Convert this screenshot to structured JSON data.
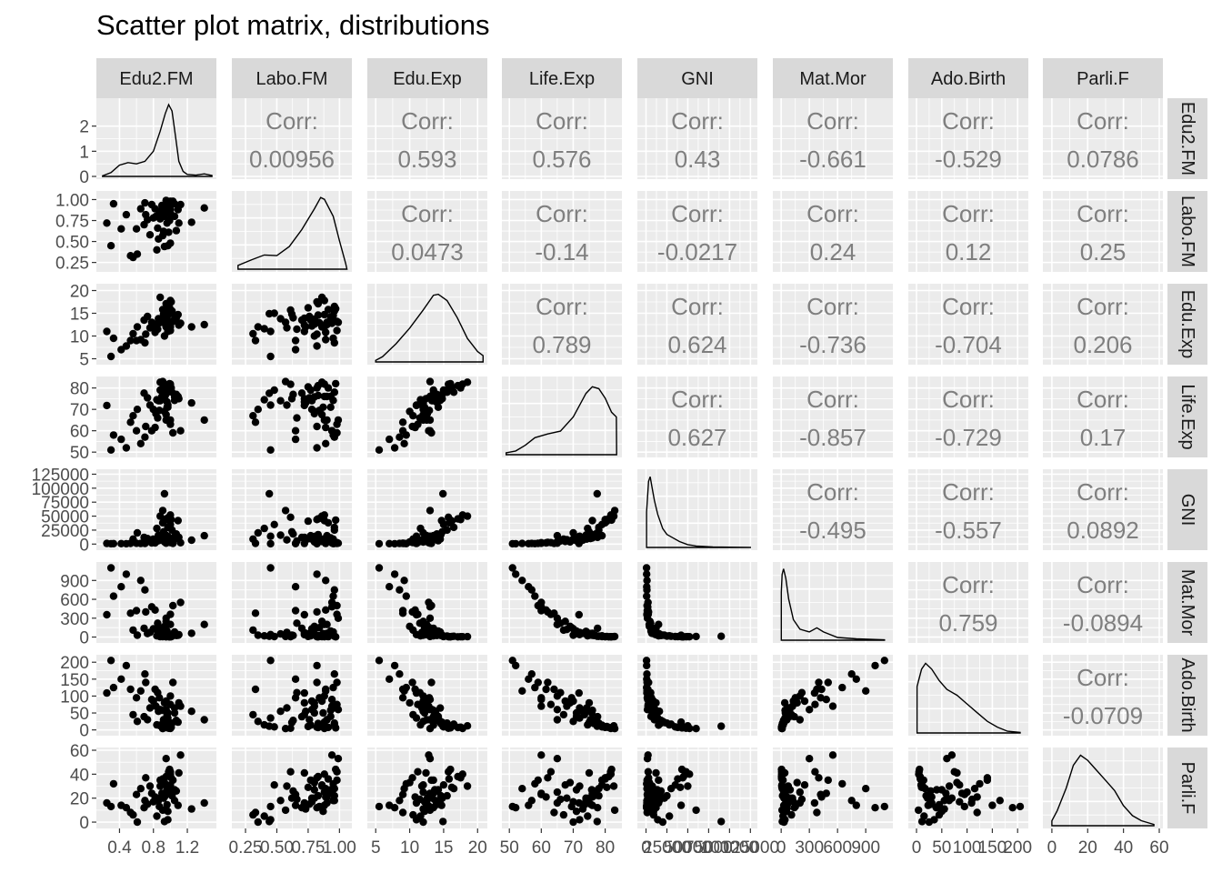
{
  "title": "Scatter plot matrix, distributions",
  "chart_data": {
    "type": "scatter",
    "title": "Scatter plot matrix, distributions",
    "variables": [
      "Edu2.FM",
      "Labo.FM",
      "Edu.Exp",
      "Life.Exp",
      "GNI",
      "Mat.Mor",
      "Ado.Birth",
      "Parli.F"
    ],
    "corr_label": "Corr:",
    "correlations": [
      [
        "",
        "0.00956",
        "0.593",
        "0.576",
        "0.43",
        "-0.661",
        "-0.529",
        "0.0786"
      ],
      [
        "",
        "",
        "0.0473",
        "-0.14",
        "-0.0217",
        "0.24",
        "0.12",
        "0.25"
      ],
      [
        "",
        "",
        "",
        "0.789",
        "0.624",
        "-0.736",
        "-0.704",
        "0.206"
      ],
      [
        "",
        "",
        "",
        "",
        "0.627",
        "-0.857",
        "-0.729",
        "0.17"
      ],
      [
        "",
        "",
        "",
        "",
        "",
        "-0.495",
        "-0.557",
        "0.0892"
      ],
      [
        "",
        "",
        "",
        "",
        "",
        "",
        "0.759",
        "-0.0894"
      ],
      [
        "",
        "",
        "",
        "",
        "",
        "",
        "",
        "-0.0709"
      ]
    ],
    "x_ticks": [
      [
        "0.4",
        "0.8",
        "1.2"
      ],
      [
        "0.25",
        "0.50",
        "0.75",
        "1.00"
      ],
      [
        "5",
        "10",
        "15",
        "20"
      ],
      [
        "50",
        "60",
        "70",
        "80"
      ],
      [
        "0",
        "25000",
        "50000",
        "75000",
        "100000",
        "125000"
      ],
      [
        "0",
        "300",
        "600",
        "900"
      ],
      [
        "0",
        "50",
        "100",
        "150",
        "200"
      ],
      [
        "0",
        "20",
        "40",
        "60"
      ]
    ],
    "y_ticks": [
      [
        "0",
        "1",
        "2"
      ],
      [
        "0.25",
        "0.50",
        "0.75",
        "1.00"
      ],
      [
        "5",
        "10",
        "15",
        "20"
      ],
      [
        "50",
        "60",
        "70",
        "80"
      ],
      [
        "0",
        "25000",
        "50000",
        "75000",
        "100000",
        "125000"
      ],
      [
        "0",
        "300",
        "600",
        "900"
      ],
      [
        "0",
        "50",
        "100",
        "150",
        "200"
      ],
      [
        "0",
        "20",
        "40",
        "60"
      ]
    ],
    "x_ranges": [
      [
        0.17,
        1.5
      ],
      [
        0.17,
        1.07
      ],
      [
        4.3,
        20.9
      ],
      [
        48.8,
        84.1
      ],
      [
        -6000,
        129000
      ],
      [
        -50,
        1150
      ],
      [
        -9,
        214
      ],
      [
        -3,
        60
      ]
    ],
    "y_ranges": [
      [
        0,
        3.0
      ],
      [
        0.17,
        1.07
      ],
      [
        4.3,
        20.9
      ],
      [
        48.8,
        84.1
      ],
      [
        -6000,
        129000
      ],
      [
        -50,
        1150
      ],
      [
        -9,
        214
      ],
      [
        -3,
        60
      ]
    ],
    "density_curves": [
      [
        [
          0.2,
          0.02
        ],
        [
          0.3,
          0.15
        ],
        [
          0.4,
          0.45
        ],
        [
          0.5,
          0.55
        ],
        [
          0.6,
          0.5
        ],
        [
          0.7,
          0.6
        ],
        [
          0.8,
          1.0
        ],
        [
          0.88,
          1.8
        ],
        [
          0.94,
          2.5
        ],
        [
          0.98,
          2.85
        ],
        [
          1.02,
          2.6
        ],
        [
          1.06,
          1.6
        ],
        [
          1.1,
          0.6
        ],
        [
          1.15,
          0.2
        ],
        [
          1.2,
          0.08
        ],
        [
          1.3,
          0.05
        ],
        [
          1.4,
          0.1
        ],
        [
          1.49,
          0.04
        ]
      ],
      [
        [
          0.19,
          0.2
        ],
        [
          0.3,
          0.5
        ],
        [
          0.4,
          0.75
        ],
        [
          0.5,
          0.72
        ],
        [
          0.6,
          1.2
        ],
        [
          0.7,
          2.1
        ],
        [
          0.8,
          3.2
        ],
        [
          0.85,
          3.8
        ],
        [
          0.88,
          3.7
        ],
        [
          0.95,
          2.8
        ],
        [
          1.0,
          1.5
        ],
        [
          1.05,
          0.3
        ],
        [
          1.06,
          0.0
        ]
      ],
      [
        [
          5.0,
          0.003
        ],
        [
          6.0,
          0.01
        ],
        [
          8.0,
          0.035
        ],
        [
          10.0,
          0.065
        ],
        [
          12.0,
          0.1
        ],
        [
          13.5,
          0.128
        ],
        [
          14.2,
          0.13
        ],
        [
          15.5,
          0.118
        ],
        [
          17.0,
          0.085
        ],
        [
          18.5,
          0.045
        ],
        [
          20.0,
          0.02
        ],
        [
          20.8,
          0.012
        ]
      ],
      [
        [
          49.0,
          0.002
        ],
        [
          52.0,
          0.004
        ],
        [
          55.0,
          0.01
        ],
        [
          58.0,
          0.018
        ],
        [
          62.0,
          0.022
        ],
        [
          66.0,
          0.025
        ],
        [
          70.0,
          0.04
        ],
        [
          74.0,
          0.065
        ],
        [
          76.0,
          0.072
        ],
        [
          78.0,
          0.07
        ],
        [
          80.0,
          0.06
        ],
        [
          82.0,
          0.045
        ],
        [
          83.5,
          0.04
        ],
        [
          83.6,
          0.0
        ]
      ],
      [
        [
          600,
          1.5
        ],
        [
          3000,
          2.8
        ],
        [
          5000,
          3.0
        ],
        [
          7000,
          2.6
        ],
        [
          10000,
          2.0
        ],
        [
          14000,
          1.4
        ],
        [
          20000,
          0.8
        ],
        [
          25000,
          0.55
        ],
        [
          30000,
          0.45
        ],
        [
          40000,
          0.25
        ],
        [
          50000,
          0.12
        ],
        [
          60000,
          0.06
        ],
        [
          80000,
          0.02
        ],
        [
          100000,
          0.01
        ],
        [
          125000,
          0.003
        ]
      ],
      [
        [
          1,
          0.0035
        ],
        [
          10,
          0.0048
        ],
        [
          25,
          0.0052
        ],
        [
          50,
          0.0045
        ],
        [
          80,
          0.003
        ],
        [
          130,
          0.0015
        ],
        [
          200,
          0.0008
        ],
        [
          300,
          0.0006
        ],
        [
          380,
          0.0009
        ],
        [
          450,
          0.0006
        ],
        [
          600,
          0.0002
        ],
        [
          800,
          0.0001
        ],
        [
          1000,
          5e-05
        ],
        [
          1100,
          3e-05
        ]
      ],
      [
        [
          1,
          0.008
        ],
        [
          10,
          0.011
        ],
        [
          18,
          0.012
        ],
        [
          30,
          0.011
        ],
        [
          45,
          0.009
        ],
        [
          60,
          0.0075
        ],
        [
          80,
          0.0065
        ],
        [
          100,
          0.005
        ],
        [
          120,
          0.0035
        ],
        [
          140,
          0.002
        ],
        [
          160,
          0.001
        ],
        [
          180,
          0.0003
        ],
        [
          205,
          0.0001
        ]
      ],
      [
        [
          0,
          0.002
        ],
        [
          3,
          0.006
        ],
        [
          8,
          0.015
        ],
        [
          12,
          0.024
        ],
        [
          16,
          0.028
        ],
        [
          20,
          0.026
        ],
        [
          25,
          0.022
        ],
        [
          30,
          0.018
        ],
        [
          35,
          0.014
        ],
        [
          40,
          0.008
        ],
        [
          45,
          0.004
        ],
        [
          50,
          0.002
        ],
        [
          57,
          0.0005
        ]
      ]
    ],
    "density_ymax": [
      3.0,
      4.0,
      0.145,
      0.08,
      3.2,
      0.0055,
      0.013,
      0.03
    ],
    "points": [
      [
        0.92,
        0.9,
        13.0,
        76.0,
        14000,
        60,
        30.0,
        21.0
      ],
      [
        0.73,
        0.76,
        14.3,
        75.4,
        10000,
        55,
        30.1,
        15.0
      ],
      [
        0.25,
        0.72,
        11.0,
        71.8,
        1130,
        355,
        108.9,
        16.0
      ],
      [
        0.69,
        0.7,
        13.5,
        77.6,
        12000,
        140,
        39.2,
        12.0
      ],
      [
        1.05,
        0.95,
        14.5,
        74.2,
        9000,
        80,
        64.6,
        18.0
      ],
      [
        0.97,
        0.96,
        16.5,
        78.0,
        30000,
        12,
        17.0,
        28.0
      ],
      [
        1.09,
        0.88,
        14.7,
        76.0,
        42000,
        28,
        23.0,
        14.0
      ],
      [
        0.88,
        0.86,
        18.5,
        82.7,
        50000,
        7,
        12.0,
        30.0
      ],
      [
        0.95,
        0.83,
        17.1,
        81.1,
        45000,
        4,
        7.0,
        38.0
      ],
      [
        0.98,
        0.61,
        15.7,
        81.7,
        48000,
        5,
        5.0,
        42.0
      ],
      [
        1.01,
        0.82,
        17.5,
        80.0,
        44000,
        5,
        8.0,
        37.0
      ],
      [
        0.91,
        0.57,
        13.0,
        83.0,
        60000,
        10,
        4.0,
        10.0
      ],
      [
        0.97,
        0.87,
        12.2,
        71.0,
        9000,
        55,
        50.0,
        9.0
      ],
      [
        0.83,
        0.8,
        12.6,
        68.0,
        8000,
        120,
        70.0,
        20.0
      ],
      [
        0.53,
        0.33,
        9.0,
        64.0,
        1400,
        380,
        120.0,
        8.0
      ],
      [
        0.97,
        0.45,
        11.0,
        72.0,
        14000,
        40,
        35.0,
        2.0
      ],
      [
        0.61,
        0.35,
        12.0,
        70.0,
        20000,
        30,
        25.0,
        0.0
      ],
      [
        0.86,
        0.53,
        13.8,
        74.0,
        16000,
        50,
        55.0,
        18.0
      ],
      [
        0.42,
        0.65,
        7.0,
        56.0,
        900,
        800,
        150.0,
        14.0
      ],
      [
        0.33,
        0.95,
        9.5,
        58.0,
        800,
        650,
        125.0,
        32.0
      ],
      [
        1.1,
        0.72,
        12.4,
        75.0,
        12000,
        38,
        80.0,
        41.0
      ],
      [
        0.88,
        0.78,
        13.3,
        74.0,
        11000,
        90,
        60.0,
        20.0
      ],
      [
        1.02,
        0.96,
        15.5,
        78.0,
        25000,
        15,
        20.0,
        22.0
      ],
      [
        0.65,
        0.89,
        9.2,
        54.0,
        1200,
        900,
        115.0,
        28.0
      ],
      [
        0.48,
        0.82,
        7.8,
        52.0,
        700,
        1000,
        190.0,
        12.0
      ],
      [
        1.0,
        0.88,
        12.0,
        65.0,
        3800,
        200,
        100.0,
        25.0
      ],
      [
        0.93,
        0.8,
        10.0,
        69.0,
        4000,
        170,
        80.0,
        33.0
      ],
      [
        0.85,
        0.66,
        11.5,
        66.0,
        5500,
        220,
        110.0,
        19.0
      ],
      [
        0.78,
        0.94,
        13.0,
        60.0,
        2100,
        480,
        90.0,
        24.0
      ],
      [
        1.25,
        0.73,
        12.0,
        73.0,
        7000,
        60,
        55.0,
        11.0
      ],
      [
        1.0,
        0.48,
        15.0,
        79.0,
        35000,
        8,
        9.0,
        31.0
      ],
      [
        0.96,
        0.93,
        14.2,
        71.0,
        6000,
        95,
        40.0,
        27.0
      ],
      [
        0.71,
        0.82,
        10.4,
        62.0,
        3000,
        400,
        140.0,
        37.0
      ],
      [
        1.07,
        0.63,
        14.0,
        77.0,
        18000,
        25,
        28.0,
        26.0
      ],
      [
        0.56,
        0.31,
        10.5,
        67.0,
        9000,
        110,
        45.0,
        6.0
      ],
      [
        0.99,
        0.97,
        16.0,
        82.0,
        43000,
        4,
        6.0,
        44.0
      ],
      [
        1.4,
        0.9,
        12.5,
        65.0,
        15000,
        200,
        30.0,
        16.0
      ],
      [
        0.9,
        0.93,
        13.5,
        76.0,
        11000,
        42,
        58.0,
        24.0
      ],
      [
        1.12,
        0.94,
        12.8,
        60.0,
        2400,
        550,
        70.0,
        56.0
      ],
      [
        0.8,
        0.78,
        12.2,
        70.0,
        9000,
        130,
        85.0,
        17.0
      ],
      [
        0.95,
        0.99,
        13.0,
        65.0,
        1700,
        300,
        60.0,
        53.0
      ],
      [
        0.6,
        0.65,
        9.0,
        60.0,
        1500,
        420,
        95.0,
        23.0
      ],
      [
        0.88,
        0.77,
        13.5,
        79.0,
        15000,
        20,
        14.0,
        35.0
      ],
      [
        0.92,
        0.62,
        14.8,
        75.0,
        22000,
        30,
        22.0,
        20.0
      ],
      [
        0.76,
        0.58,
        11.8,
        72.0,
        7500,
        75,
        65.0,
        30.0
      ],
      [
        0.3,
        0.45,
        5.5,
        51.0,
        600,
        1100,
        205.0,
        13.0
      ],
      [
        1.0,
        0.98,
        11.2,
        63.0,
        2600,
        360,
        75.0,
        42.0
      ],
      [
        0.91,
        0.91,
        15.8,
        80.0,
        38000,
        6,
        7.5,
        36.0
      ],
      [
        0.96,
        0.72,
        13.9,
        73.5,
        10500,
        65,
        45.0,
        14.5
      ],
      [
        0.84,
        0.4,
        11.6,
        74.5,
        28000,
        20,
        15.0,
        5.0
      ],
      [
        0.94,
        0.83,
        14.6,
        76.5,
        17000,
        25,
        19.0,
        22.0
      ],
      [
        1.03,
        0.98,
        13.2,
        59.0,
        1300,
        500,
        140.0,
        35.0
      ],
      [
        0.7,
        0.96,
        8.5,
        57.0,
        1100,
        750,
        165.0,
        18.0
      ],
      [
        0.99,
        0.75,
        16.2,
        80.5,
        41000,
        9,
        10.0,
        29.0
      ],
      [
        0.87,
        0.84,
        12.9,
        69.5,
        6500,
        150,
        95.0,
        13.0
      ],
      [
        0.93,
        0.44,
        14.9,
        77.5,
        90000,
        12,
        11.0,
        0.5
      ],
      [
        1.05,
        0.8,
        13.7,
        75.8,
        13500,
        45,
        50.0,
        27.0
      ],
      [
        0.82,
        0.89,
        10.8,
        61.5,
        2200,
        430,
        120.0,
        21.0
      ],
      [
        1.0,
        0.88,
        17.8,
        81.8,
        52000,
        5,
        4.5,
        40.0
      ],
      [
        0.95,
        0.86,
        12.0,
        67.5,
        4800,
        250,
        85.0,
        31.0
      ]
    ]
  }
}
